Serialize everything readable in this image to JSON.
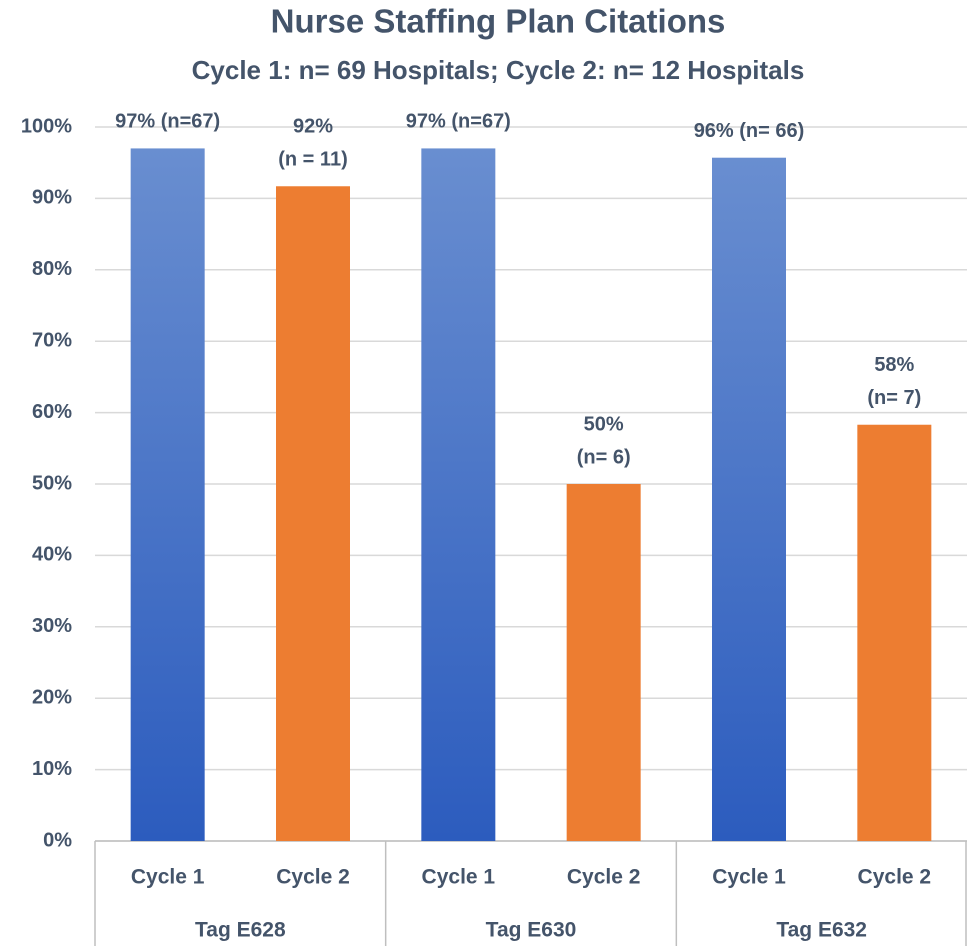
{
  "chart_data": {
    "type": "bar",
    "title": "Nurse Staffing Plan Citations",
    "subtitle": "Cycle 1: n= 69 Hospitals; Cycle 2: n= 12 Hospitals",
    "categories": [
      "Tag E628",
      "Tag E630",
      "Tag E632"
    ],
    "series": [
      {
        "name": "Cycle 1",
        "color": "#4472c4",
        "gradient": true,
        "values": [
          97,
          97,
          95.7
        ],
        "value_labels": [
          [
            "97% (n=67)"
          ],
          [
            "97% (n=67)"
          ],
          [
            "96% (n= 66)"
          ]
        ]
      },
      {
        "name": "Cycle 2",
        "color": "#ed7d31",
        "gradient": false,
        "values": [
          91.7,
          50,
          58.3
        ],
        "value_labels": [
          [
            "92%",
            "(n = 11)"
          ],
          [
            "50%",
            "(n= 6)"
          ],
          [
            "58%",
            "(n= 7)"
          ]
        ]
      }
    ],
    "ylim": [
      0,
      100
    ],
    "yticks": [
      {
        "value": 0,
        "label": "0%"
      },
      {
        "value": 10,
        "label": "10%"
      },
      {
        "value": 20,
        "label": "20%"
      },
      {
        "value": 30,
        "label": "30%"
      },
      {
        "value": 40,
        "label": "40%"
      },
      {
        "value": 50,
        "label": "50%"
      },
      {
        "value": 60,
        "label": "60%"
      },
      {
        "value": 70,
        "label": "70%"
      },
      {
        "value": 80,
        "label": "80%"
      },
      {
        "value": 90,
        "label": "90%"
      },
      {
        "value": 100,
        "label": "100%"
      }
    ],
    "grid": true
  }
}
